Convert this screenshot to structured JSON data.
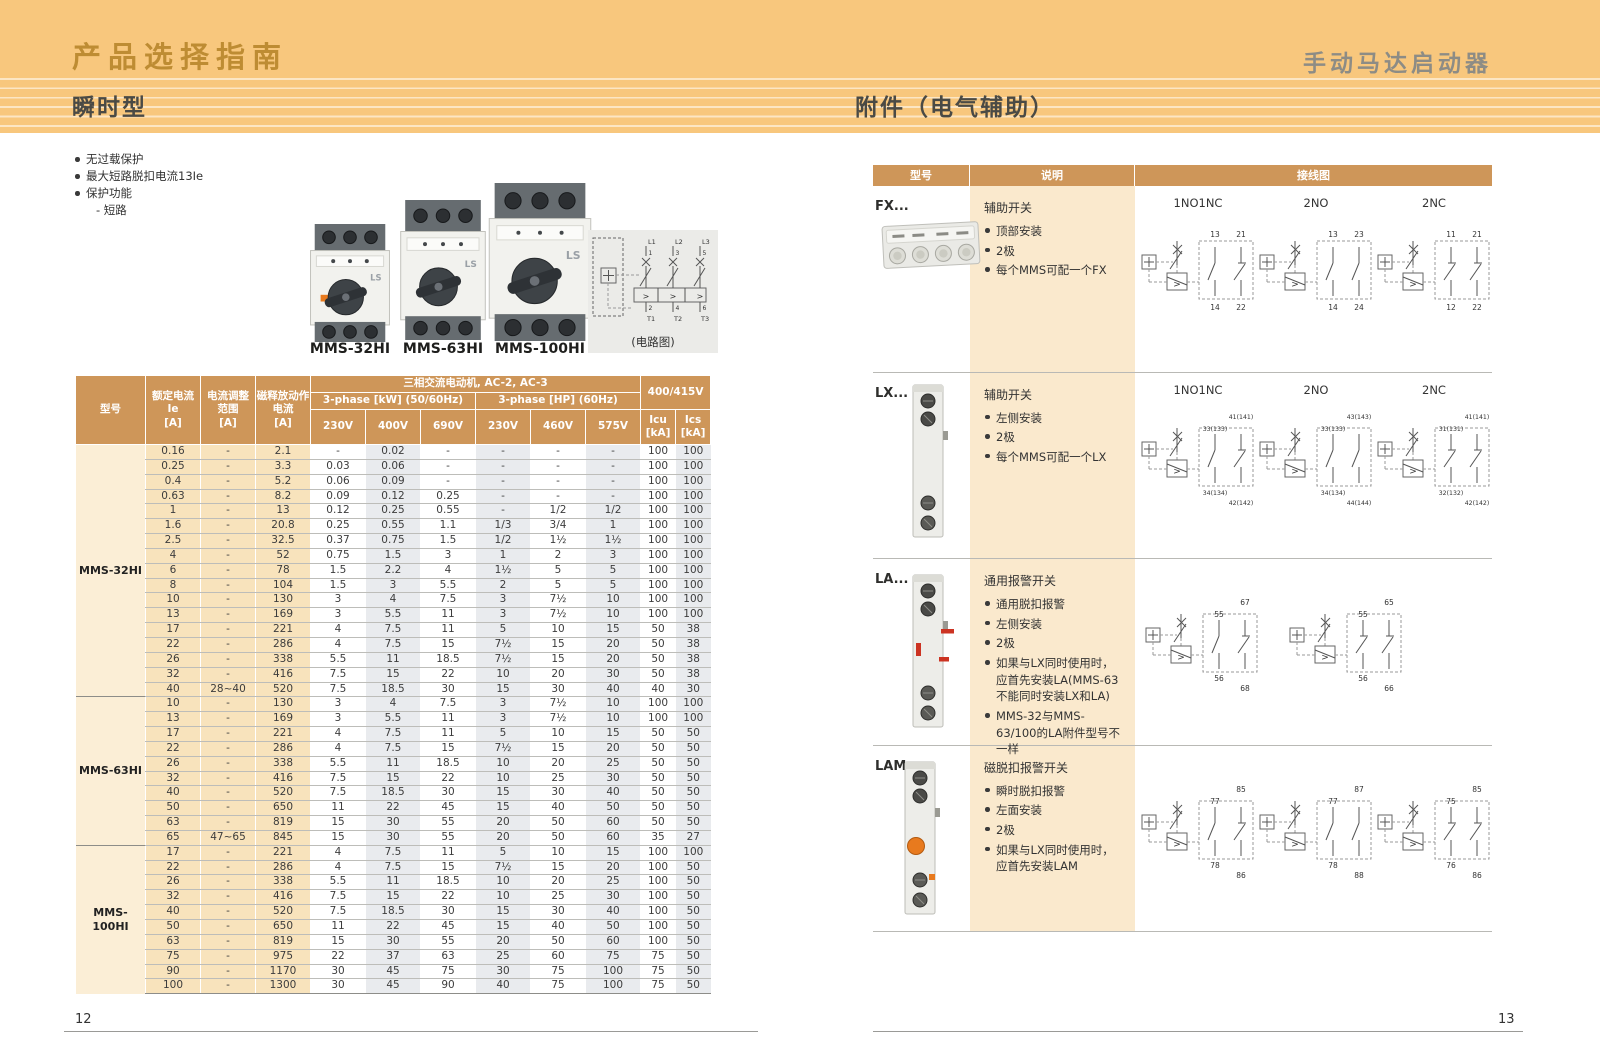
{
  "page": {
    "left_number": "12",
    "right_number": "13"
  },
  "banner": {
    "title": "产品选择指南",
    "product": "手动马达启动器",
    "left_section": "瞬时型",
    "right_section": "附件（电气辅助）"
  },
  "left": {
    "bullets": [
      "无过载保护",
      "最大短路脱扣电流13Ie",
      "保护功能"
    ],
    "sub_bullet": "- 短路",
    "products": [
      {
        "label": "MMS-32HI"
      },
      {
        "label": "MMS-63HI"
      },
      {
        "label": "MMS-100HI"
      }
    ],
    "circuit": {
      "caption": "(电路图)",
      "top_labels": [
        "L1",
        "L2",
        "L3"
      ],
      "top_terms": [
        "1",
        "3",
        "5"
      ],
      "bottom_terms": [
        "2",
        "4",
        "6"
      ],
      "bottom_labels": [
        "T1",
        "T2",
        "T3"
      ]
    },
    "table": {
      "headers": {
        "model": "型号",
        "rated": "额定电流\nIe\n[A]",
        "range": "电流调整\n范围\n[A]",
        "magnetic": "磁释放动作\n电流\n[A]",
        "group": "三相交流电动机, AC-2, AC-3",
        "kw": "3-phase [kW] (50/60Hz)",
        "hp": "3-phase [HP] (60Hz)",
        "volts_kw": [
          "230V",
          "400V",
          "690V"
        ],
        "volts_hp": [
          "230V",
          "460V",
          "575V"
        ],
        "v400": "400/415V",
        "icu": "Icu\n[kA]",
        "ics": "Ics\n[kA]"
      },
      "groups": [
        {
          "model": "MMS-32HI",
          "rows": [
            [
              "0.16",
              "-",
              "2.1",
              "-",
              "0.02",
              "-",
              "-",
              "-",
              "-",
              "100",
              "100"
            ],
            [
              "0.25",
              "-",
              "3.3",
              "0.03",
              "0.06",
              "-",
              "-",
              "-",
              "-",
              "100",
              "100"
            ],
            [
              "0.4",
              "-",
              "5.2",
              "0.06",
              "0.09",
              "-",
              "-",
              "-",
              "-",
              "100",
              "100"
            ],
            [
              "0.63",
              "-",
              "8.2",
              "0.09",
              "0.12",
              "0.25",
              "-",
              "-",
              "-",
              "100",
              "100"
            ],
            [
              "1",
              "-",
              "13",
              "0.12",
              "0.25",
              "0.55",
              "-",
              "1/2",
              "1/2",
              "100",
              "100"
            ],
            [
              "1.6",
              "-",
              "20.8",
              "0.25",
              "0.55",
              "1.1",
              "1/3",
              "3/4",
              "1",
              "100",
              "100"
            ],
            [
              "2.5",
              "-",
              "32.5",
              "0.37",
              "0.75",
              "1.5",
              "1/2",
              "1½",
              "1½",
              "100",
              "100"
            ],
            [
              "4",
              "-",
              "52",
              "0.75",
              "1.5",
              "3",
              "1",
              "2",
              "3",
              "100",
              "100"
            ],
            [
              "6",
              "-",
              "78",
              "1.5",
              "2.2",
              "4",
              "1½",
              "5",
              "5",
              "100",
              "100"
            ],
            [
              "8",
              "-",
              "104",
              "1.5",
              "3",
              "5.5",
              "2",
              "5",
              "5",
              "100",
              "100"
            ],
            [
              "10",
              "-",
              "130",
              "3",
              "4",
              "7.5",
              "3",
              "7½",
              "10",
              "100",
              "100"
            ],
            [
              "13",
              "-",
              "169",
              "3",
              "5.5",
              "11",
              "3",
              "7½",
              "10",
              "100",
              "100"
            ],
            [
              "17",
              "-",
              "221",
              "4",
              "7.5",
              "11",
              "5",
              "10",
              "15",
              "50",
              "38"
            ],
            [
              "22",
              "-",
              "286",
              "4",
              "7.5",
              "15",
              "7½",
              "15",
              "20",
              "50",
              "38"
            ],
            [
              "26",
              "-",
              "338",
              "5.5",
              "11",
              "18.5",
              "7½",
              "15",
              "20",
              "50",
              "38"
            ],
            [
              "32",
              "-",
              "416",
              "7.5",
              "15",
              "22",
              "10",
              "20",
              "30",
              "50",
              "38"
            ],
            [
              "40",
              "28~40",
              "520",
              "7.5",
              "18.5",
              "30",
              "15",
              "30",
              "40",
              "40",
              "30"
            ]
          ]
        },
        {
          "model": "MMS-63HI",
          "rows": [
            [
              "10",
              "-",
              "130",
              "3",
              "4",
              "7.5",
              "3",
              "7½",
              "10",
              "100",
              "100"
            ],
            [
              "13",
              "-",
              "169",
              "3",
              "5.5",
              "11",
              "3",
              "7½",
              "10",
              "100",
              "100"
            ],
            [
              "17",
              "-",
              "221",
              "4",
              "7.5",
              "11",
              "5",
              "10",
              "15",
              "50",
              "50"
            ],
            [
              "22",
              "-",
              "286",
              "4",
              "7.5",
              "15",
              "7½",
              "15",
              "20",
              "50",
              "50"
            ],
            [
              "26",
              "-",
              "338",
              "5.5",
              "11",
              "18.5",
              "10",
              "20",
              "25",
              "50",
              "50"
            ],
            [
              "32",
              "-",
              "416",
              "7.5",
              "15",
              "22",
              "10",
              "25",
              "30",
              "50",
              "50"
            ],
            [
              "40",
              "-",
              "520",
              "7.5",
              "18.5",
              "30",
              "15",
              "30",
              "40",
              "50",
              "50"
            ],
            [
              "50",
              "-",
              "650",
              "11",
              "22",
              "45",
              "15",
              "40",
              "50",
              "50",
              "50"
            ],
            [
              "63",
              "-",
              "819",
              "15",
              "30",
              "55",
              "20",
              "50",
              "60",
              "50",
              "50"
            ],
            [
              "65",
              "47~65",
              "845",
              "15",
              "30",
              "55",
              "20",
              "50",
              "60",
              "35",
              "27"
            ]
          ]
        },
        {
          "model": "MMS-100HI",
          "rows": [
            [
              "17",
              "-",
              "221",
              "4",
              "7.5",
              "11",
              "5",
              "10",
              "15",
              "100",
              "100"
            ],
            [
              "22",
              "-",
              "286",
              "4",
              "7.5",
              "15",
              "7½",
              "15",
              "20",
              "100",
              "50"
            ],
            [
              "26",
              "-",
              "338",
              "5.5",
              "11",
              "18.5",
              "10",
              "20",
              "25",
              "100",
              "50"
            ],
            [
              "32",
              "-",
              "416",
              "7.5",
              "15",
              "22",
              "10",
              "25",
              "30",
              "100",
              "50"
            ],
            [
              "40",
              "-",
              "520",
              "7.5",
              "18.5",
              "30",
              "15",
              "30",
              "40",
              "100",
              "50"
            ],
            [
              "50",
              "-",
              "650",
              "11",
              "22",
              "45",
              "15",
              "40",
              "50",
              "100",
              "50"
            ],
            [
              "63",
              "-",
              "819",
              "15",
              "30",
              "55",
              "20",
              "50",
              "60",
              "100",
              "50"
            ],
            [
              "75",
              "-",
              "975",
              "22",
              "37",
              "63",
              "25",
              "60",
              "75",
              "75",
              "50"
            ],
            [
              "90",
              "-",
              "1170",
              "30",
              "45",
              "75",
              "30",
              "75",
              "100",
              "75",
              "50"
            ],
            [
              "100",
              "-",
              "1300",
              "30",
              "45",
              "90",
              "40",
              "75",
              "100",
              "75",
              "50"
            ]
          ]
        }
      ]
    }
  },
  "right": {
    "table_headers": [
      "型号",
      "说明",
      "接线图"
    ],
    "rows": [
      {
        "model": "FX...",
        "title": "辅助开关",
        "bullets": [
          "顶部安装",
          "2极",
          "每个MMS可配一个FX"
        ],
        "diagrams": [
          {
            "label": "1NO1NC",
            "tl": "13",
            "tr": "21",
            "bl": "14",
            "br": "22",
            "poles": "no,nc",
            "stagger": false
          },
          {
            "label": "2NO",
            "tl": "13",
            "tr": "23",
            "bl": "14",
            "br": "24",
            "poles": "no,no",
            "stagger": false
          },
          {
            "label": "2NC",
            "tl": "11",
            "tr": "21",
            "bl": "12",
            "br": "22",
            "poles": "nc,nc",
            "stagger": false
          }
        ]
      },
      {
        "model": "LX...",
        "title": "辅助开关",
        "bullets": [
          "左侧安装",
          "2极",
          "每个MMS可配一个LX"
        ],
        "diagrams": [
          {
            "label": "1NO1NC",
            "tl": "33(133)",
            "tr": "41(141)",
            "bl": "34(134)",
            "br": "42(142)",
            "poles": "no,nc",
            "stagger": true
          },
          {
            "label": "2NO",
            "tl": "33(133)",
            "tr": "43(143)",
            "bl": "34(134)",
            "br": "44(144)",
            "poles": "no,no",
            "stagger": true
          },
          {
            "label": "2NC",
            "tl": "31(131)",
            "tr": "41(141)",
            "bl": "32(132)",
            "br": "42(142)",
            "poles": "nc,nc",
            "stagger": true
          }
        ]
      },
      {
        "model": "LA...",
        "title": "通用报警开关",
        "bullets": [
          "通用脱扣报警",
          "左侧安装",
          "2极",
          "如果与LX同时使用时，应首先安装LA(MMS-63不能同时安装LX和LA)",
          "MMS-32与MMS-63/100的LA附件型号不一样"
        ],
        "diagrams": [
          {
            "label": "",
            "tl": "55",
            "tr": "67",
            "bl": "56",
            "br": "68",
            "poles": "no,nc",
            "stagger": true
          },
          {
            "label": "",
            "tl": "55",
            "tr": "65",
            "bl": "56",
            "br": "66",
            "poles": "nc,nc",
            "stagger": true
          }
        ]
      },
      {
        "model": "LAM...",
        "title": "磁脱扣报警开关",
        "bullets": [
          "瞬时脱扣报警",
          "左面安装",
          "2极",
          "如果与LX同时使用时，应首先安装LAM"
        ],
        "diagrams": [
          {
            "label": "",
            "tl": "77",
            "tr": "85",
            "bl": "78",
            "br": "86",
            "poles": "no,nc",
            "stagger": true
          },
          {
            "label": "",
            "tl": "77",
            "tr": "87",
            "bl": "78",
            "br": "88",
            "poles": "no,no",
            "stagger": true
          },
          {
            "label": "",
            "tl": "75",
            "tr": "85",
            "bl": "76",
            "br": "86",
            "poles": "nc,nc",
            "stagger": true
          }
        ]
      }
    ]
  }
}
